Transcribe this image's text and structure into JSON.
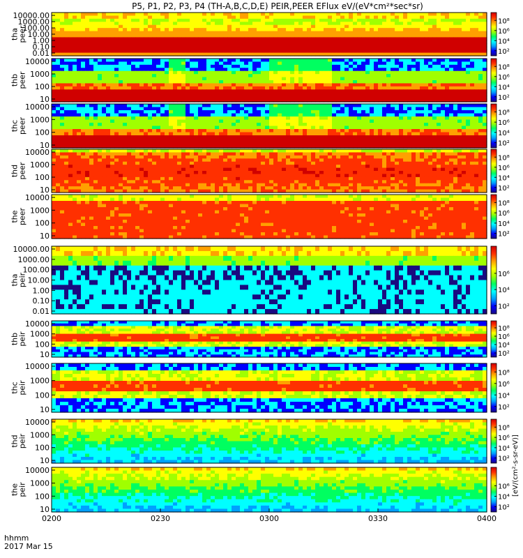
{
  "title": "P5, P1, P2, P3, P4 (TH-A,B,C,D,E) PEIR,PEER EFlux eV/(eV*cm²*sec*sr)",
  "footer": {
    "time_label": "hhmm",
    "date_label": "2017 Mar 15"
  },
  "chart_data": {
    "type": "heatmap",
    "x_unit": "hhmm",
    "x_ticks": [
      "0200",
      "0230",
      "0300",
      "0330",
      "0400"
    ],
    "x_range": [
      "0200",
      "0400"
    ],
    "y_scale": "log",
    "colorbar": {
      "scale": "log",
      "tick_labels": [
        "10²",
        "10⁴",
        "10⁶",
        "10⁸"
      ],
      "colormap": [
        "#1a0a80",
        "#0000ff",
        "#00a0ff",
        "#00ffff",
        "#00ff60",
        "#a0ff00",
        "#ffff00",
        "#ffa000",
        "#ff3000",
        "#d00000"
      ]
    },
    "colorbar_unit_label": "[eV/(cm²-s-sr-eV)]",
    "panels": [
      {
        "probe": "tha",
        "species": "peer",
        "ylabel": "tha\npeer",
        "y_ticks": [
          "10000.00",
          "1000.00",
          "100.00",
          "10.00",
          "1.00",
          "0.10",
          "0.01"
        ],
        "colorbar_ticks": [
          "10²",
          "10⁴",
          "10⁶",
          "10⁸"
        ]
      },
      {
        "probe": "thb",
        "species": "peer",
        "ylabel": "thb\npeer",
        "y_ticks": [
          "10000",
          "1000",
          "100",
          "10"
        ],
        "colorbar_ticks": [
          "10²",
          "10⁴",
          "10⁶",
          "10⁸"
        ]
      },
      {
        "probe": "thc",
        "species": "peer",
        "ylabel": "thc\npeer",
        "y_ticks": [
          "10000",
          "1000",
          "100",
          "10"
        ],
        "colorbar_ticks": [
          "10²",
          "10⁴",
          "10⁶",
          "10⁸"
        ]
      },
      {
        "probe": "thd",
        "species": "peer",
        "ylabel": "thd\npeer",
        "y_ticks": [
          "10000",
          "1000",
          "100",
          "10"
        ],
        "colorbar_ticks": [
          "10²",
          "10⁴",
          "10⁶",
          "10⁸"
        ]
      },
      {
        "probe": "the",
        "species": "peer",
        "ylabel": "the\npeer",
        "y_ticks": [
          "10000",
          "1000",
          "100",
          "10"
        ],
        "colorbar_ticks": [
          "10²",
          "10⁴",
          "10⁶",
          "10⁸"
        ]
      },
      {
        "probe": "tha",
        "species": "peir",
        "ylabel": "tha\npeir",
        "y_ticks": [
          "10000.00",
          "1000.00",
          "100.00",
          "10.00",
          "1.00",
          "0.10",
          "0.01"
        ],
        "colorbar_ticks": [
          "10²",
          "10⁴",
          "10⁶"
        ]
      },
      {
        "probe": "thb",
        "species": "peir",
        "ylabel": "thb\npeir",
        "y_ticks": [
          "10000",
          "1000",
          "100",
          "10"
        ],
        "colorbar_ticks": [
          "10²",
          "10⁴",
          "10⁶",
          "10⁸"
        ]
      },
      {
        "probe": "thc",
        "species": "peir",
        "ylabel": "thc\npeir",
        "y_ticks": [
          "10000",
          "1000",
          "100",
          "10"
        ],
        "colorbar_ticks": [
          "10²",
          "10⁴",
          "10⁶",
          "10⁸"
        ]
      },
      {
        "probe": "thd",
        "species": "peir",
        "ylabel": "thd\npeir",
        "y_ticks": [
          "10000",
          "1000",
          "100",
          "10"
        ],
        "colorbar_ticks": [
          "10²",
          "10⁴",
          "10⁶",
          "10⁸"
        ]
      },
      {
        "probe": "the",
        "species": "peir",
        "ylabel": "the\npeir",
        "y_ticks": [
          "10000",
          "1000",
          "100",
          "10"
        ],
        "colorbar_ticks": [
          "10²",
          "10⁴",
          "10⁶"
        ]
      }
    ]
  }
}
